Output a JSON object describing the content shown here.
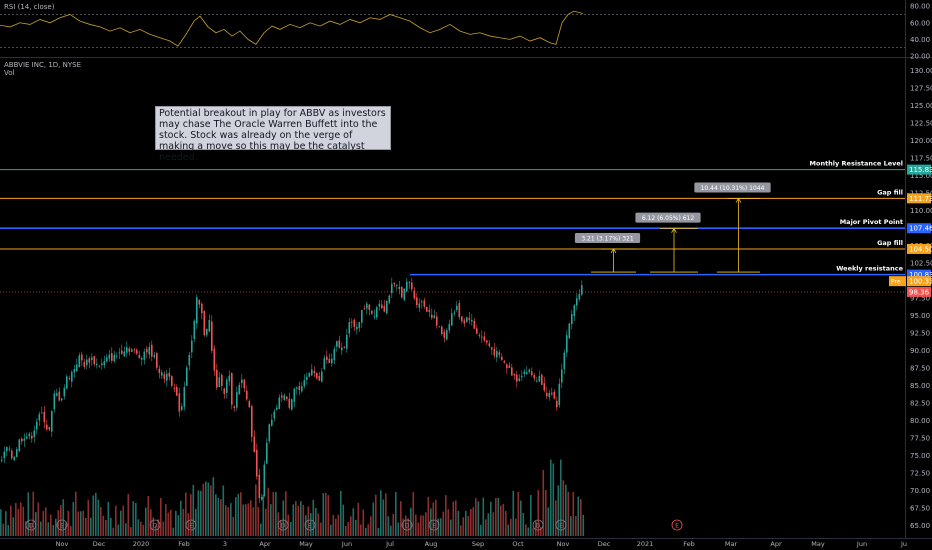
{
  "rsi_title": "RSI (14, close)",
  "symbol_title": "ABBVIE INC, 1D, NYSE",
  "volume_label": "Vol",
  "note_text": "Potential breakout in play for ABBV as investors may chase The Oracle Warren Buffett into the stock. Stock was already on the verge of making a move so this may be the catalyst needed.",
  "chart_data": {
    "type": "candlestick",
    "rsi": {
      "ticks": [
        "80.00",
        "60.00",
        "40.00",
        "20.00"
      ],
      "levels": [
        70,
        30
      ],
      "ylim": [
        20,
        85
      ],
      "color": "#c9a227"
    },
    "price_ticks": [
      "130.00",
      "127.50",
      "125.00",
      "122.50",
      "120.00",
      "117.50",
      "115.00",
      "112.50",
      "110.00",
      "107.50",
      "105.00",
      "102.50",
      "100.00",
      "97.50",
      "95.00",
      "92.50",
      "90.00",
      "87.50",
      "85.00",
      "82.50",
      "80.00",
      "77.50",
      "75.00",
      "72.50",
      "70.00",
      "67.50",
      "65.00"
    ],
    "ylim": [
      63.5,
      131.2
    ],
    "x_labels": [
      "Nov",
      "Dec",
      "2020",
      "Feb",
      "3",
      "Apr",
      "May",
      "Jun",
      "Jul",
      "Aug",
      "Sep",
      "Oct",
      "Nov",
      "Dec",
      "2021",
      "Feb",
      "Mar",
      "Apr",
      "May",
      "Jun",
      "Ju"
    ],
    "levels": [
      {
        "name": "Monthly Resistance Level",
        "value": 115.83,
        "label": "115.83",
        "color": "#26a69a"
      },
      {
        "name": "Gap fill",
        "value": 111.73,
        "label": "111.73",
        "color": "#f7a21b"
      },
      {
        "name": "Major Pivot Point",
        "value": 107.46,
        "label": "107.46",
        "color": "#2962ff"
      },
      {
        "name": "Gap fill",
        "value": 104.5,
        "label": "104.50",
        "color": "#f7a21b"
      },
      {
        "name": "Weekly resistance",
        "value": 100.83,
        "label": "100.83",
        "color": "#2962ff"
      }
    ],
    "price_markers": [
      {
        "label": "100.33",
        "value": 99.9,
        "color": "#f7a21b",
        "tag": "Pre"
      },
      {
        "label": "98.36",
        "value": 98.36,
        "color": "#ef5350"
      }
    ],
    "measures": [
      {
        "label": "3.21 (3.17%) 321",
        "from": 101.2,
        "to": 104.5
      },
      {
        "label": "6.12 (6.05%) 612",
        "from": 101.2,
        "to": 107.4
      },
      {
        "label": "10.44 (10.31%) 1044",
        "from": 101.2,
        "to": 111.7
      }
    ],
    "close_path": [
      [
        0,
        74
      ],
      [
        6,
        76
      ],
      [
        12,
        74.5
      ],
      [
        18,
        77
      ],
      [
        24,
        78
      ],
      [
        30,
        77.5
      ],
      [
        36,
        80
      ],
      [
        42,
        81
      ],
      [
        48,
        78
      ],
      [
        54,
        84
      ],
      [
        60,
        83
      ],
      [
        66,
        86
      ],
      [
        72,
        87
      ],
      [
        78,
        89
      ],
      [
        84,
        88
      ],
      [
        90,
        89
      ],
      [
        96,
        88
      ],
      [
        102,
        88
      ],
      [
        108,
        89
      ],
      [
        114,
        89
      ],
      [
        120,
        90
      ],
      [
        126,
        90.5
      ],
      [
        132,
        90
      ],
      [
        138,
        89
      ],
      [
        144,
        90
      ],
      [
        150,
        90
      ],
      [
        156,
        88
      ],
      [
        162,
        86
      ],
      [
        168,
        87
      ],
      [
        174,
        84
      ],
      [
        180,
        81
      ],
      [
        186,
        88
      ],
      [
        192,
        92
      ],
      [
        196,
        97
      ],
      [
        200,
        96
      ],
      [
        204,
        92
      ],
      [
        208,
        95
      ],
      [
        212,
        88
      ],
      [
        216,
        85
      ],
      [
        220,
        86
      ],
      [
        224,
        84
      ],
      [
        228,
        87
      ],
      [
        232,
        80
      ],
      [
        236,
        84
      ],
      [
        240,
        86
      ],
      [
        244,
        85
      ],
      [
        248,
        82
      ],
      [
        252,
        77
      ],
      [
        256,
        72
      ],
      [
        260,
        68
      ],
      [
        264,
        74
      ],
      [
        268,
        79
      ],
      [
        272,
        80
      ],
      [
        276,
        82
      ],
      [
        282,
        84
      ],
      [
        288,
        82
      ],
      [
        294,
        85
      ],
      [
        300,
        84
      ],
      [
        306,
        86
      ],
      [
        312,
        88
      ],
      [
        318,
        85
      ],
      [
        324,
        89
      ],
      [
        330,
        88
      ],
      [
        336,
        91
      ],
      [
        342,
        90
      ],
      [
        348,
        94
      ],
      [
        354,
        93
      ],
      [
        360,
        95
      ],
      [
        366,
        97
      ],
      [
        372,
        95
      ],
      [
        378,
        97
      ],
      [
        384,
        96
      ],
      [
        390,
        99
      ],
      [
        396,
        99
      ],
      [
        402,
        98
      ],
      [
        408,
        100
      ],
      [
        412,
        98
      ],
      [
        416,
        97
      ],
      [
        420,
        97
      ],
      [
        426,
        96
      ],
      [
        432,
        95
      ],
      [
        438,
        93
      ],
      [
        444,
        92
      ],
      [
        450,
        95
      ],
      [
        456,
        96
      ],
      [
        462,
        94
      ],
      [
        468,
        95
      ],
      [
        474,
        93
      ],
      [
        480,
        92
      ],
      [
        486,
        91
      ],
      [
        492,
        90
      ],
      [
        498,
        89
      ],
      [
        504,
        88
      ],
      [
        510,
        87
      ],
      [
        516,
        86
      ],
      [
        522,
        87
      ],
      [
        528,
        87
      ],
      [
        534,
        86
      ],
      [
        540,
        86
      ],
      [
        546,
        84
      ],
      [
        552,
        83
      ],
      [
        556,
        82
      ],
      [
        560,
        87
      ],
      [
        564,
        90
      ],
      [
        568,
        94
      ],
      [
        572,
        95
      ],
      [
        576,
        98
      ],
      [
        580,
        99
      ],
      [
        583,
        99.5
      ]
    ],
    "rsi_path": [
      [
        0,
        57
      ],
      [
        10,
        55
      ],
      [
        20,
        60
      ],
      [
        30,
        58
      ],
      [
        40,
        64
      ],
      [
        50,
        60
      ],
      [
        60,
        66
      ],
      [
        70,
        70
      ],
      [
        80,
        62
      ],
      [
        90,
        58
      ],
      [
        100,
        55
      ],
      [
        110,
        50
      ],
      [
        120,
        54
      ],
      [
        130,
        48
      ],
      [
        140,
        52
      ],
      [
        150,
        46
      ],
      [
        160,
        42
      ],
      [
        170,
        38
      ],
      [
        178,
        32
      ],
      [
        186,
        46
      ],
      [
        194,
        62
      ],
      [
        200,
        68
      ],
      [
        208,
        55
      ],
      [
        216,
        48
      ],
      [
        224,
        52
      ],
      [
        232,
        44
      ],
      [
        240,
        50
      ],
      [
        248,
        40
      ],
      [
        256,
        34
      ],
      [
        264,
        48
      ],
      [
        272,
        56
      ],
      [
        280,
        52
      ],
      [
        290,
        58
      ],
      [
        300,
        54
      ],
      [
        310,
        60
      ],
      [
        320,
        56
      ],
      [
        330,
        62
      ],
      [
        340,
        58
      ],
      [
        350,
        64
      ],
      [
        360,
        60
      ],
      [
        370,
        66
      ],
      [
        380,
        64
      ],
      [
        390,
        70
      ],
      [
        400,
        66
      ],
      [
        410,
        62
      ],
      [
        420,
        54
      ],
      [
        430,
        48
      ],
      [
        440,
        52
      ],
      [
        450,
        58
      ],
      [
        460,
        50
      ],
      [
        470,
        46
      ],
      [
        480,
        48
      ],
      [
        490,
        44
      ],
      [
        500,
        42
      ],
      [
        510,
        40
      ],
      [
        520,
        44
      ],
      [
        530,
        38
      ],
      [
        540,
        42
      ],
      [
        550,
        36
      ],
      [
        556,
        34
      ],
      [
        562,
        60
      ],
      [
        568,
        70
      ],
      [
        574,
        74
      ],
      [
        580,
        72
      ],
      [
        583,
        71
      ]
    ],
    "event_markers": [
      "D",
      "E",
      "D",
      "E",
      "D",
      "E",
      "D",
      "E",
      "D",
      "E",
      "E"
    ]
  }
}
